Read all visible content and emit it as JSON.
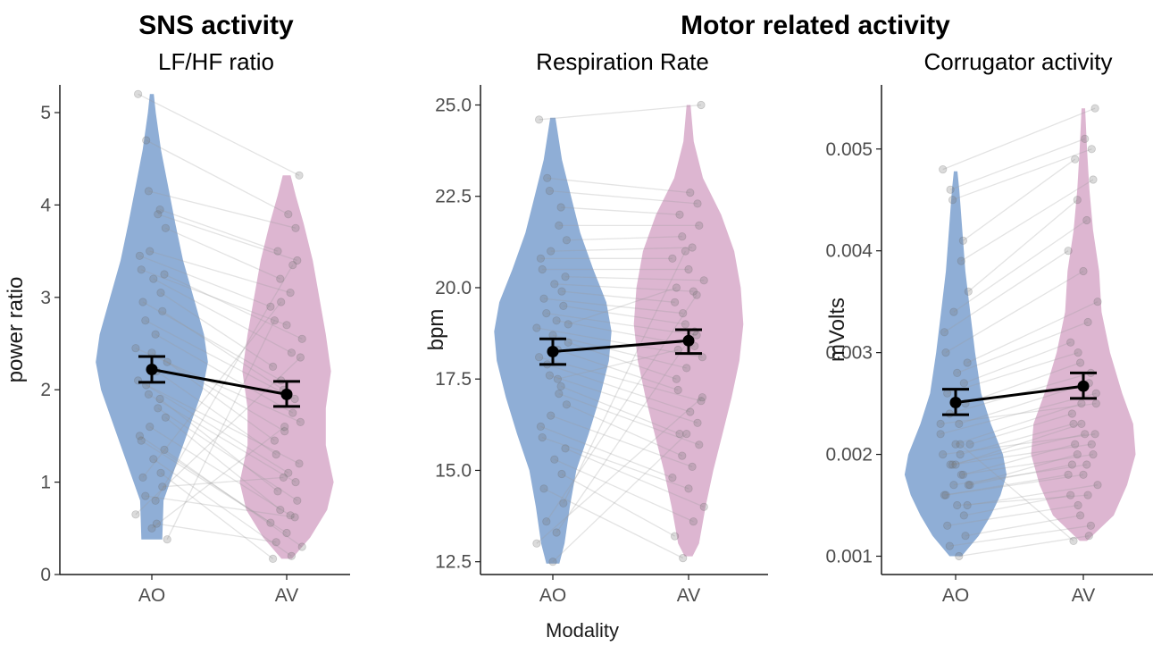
{
  "group_titles": {
    "sns": "SNS activity",
    "motor": "Motor related activity"
  },
  "xlabel": "Modality",
  "colors": {
    "AO": "#7ba0cf",
    "AV": "#d7a9c9"
  },
  "chart_data": [
    {
      "type": "violin",
      "title": "LF/HF ratio",
      "group_title": "SNS activity",
      "xlabel": "Modality",
      "ylabel": "power ratio",
      "categories": [
        "AO",
        "AV"
      ],
      "ylim": [
        0,
        5.3
      ],
      "yticks": [
        0,
        1,
        2,
        3,
        4,
        5
      ],
      "ytick_labels": [
        "0",
        "1",
        "2",
        "3",
        "4",
        "5"
      ],
      "distribution_range": {
        "AO": [
          0.38,
          5.2
        ],
        "AV": [
          0.17,
          4.32
        ]
      },
      "density": {
        "AO": [
          [
            0.38,
            0.16
          ],
          [
            0.8,
            0.18
          ],
          [
            1.2,
            0.38
          ],
          [
            1.6,
            0.58
          ],
          [
            2.0,
            0.78
          ],
          [
            2.3,
            0.86
          ],
          [
            2.6,
            0.8
          ],
          [
            3.0,
            0.64
          ],
          [
            3.4,
            0.48
          ],
          [
            3.8,
            0.36
          ],
          [
            4.2,
            0.25
          ],
          [
            4.6,
            0.14
          ],
          [
            5.0,
            0.06
          ],
          [
            5.2,
            0.03
          ]
        ],
        "AV": [
          [
            0.17,
            0.08
          ],
          [
            0.4,
            0.36
          ],
          [
            0.7,
            0.62
          ],
          [
            1.0,
            0.72
          ],
          [
            1.4,
            0.6
          ],
          [
            1.8,
            0.6
          ],
          [
            2.2,
            0.68
          ],
          [
            2.6,
            0.6
          ],
          [
            3.0,
            0.5
          ],
          [
            3.4,
            0.4
          ],
          [
            3.8,
            0.26
          ],
          [
            4.1,
            0.14
          ],
          [
            4.32,
            0.06
          ]
        ]
      },
      "means": {
        "AO": 2.22,
        "AV": 1.95
      },
      "error_bars": {
        "AO": [
          2.08,
          2.36
        ],
        "AV": [
          1.82,
          2.09
        ]
      },
      "points": {
        "AO": [
          5.2,
          4.7,
          4.15,
          3.95,
          3.9,
          3.75,
          3.5,
          3.45,
          3.3,
          3.25,
          3.2,
          3.05,
          2.95,
          2.85,
          2.75,
          2.6,
          2.45,
          2.4,
          2.3,
          2.2,
          2.1,
          2.05,
          1.95,
          1.9,
          1.8,
          1.7,
          1.6,
          1.5,
          1.45,
          1.35,
          1.25,
          1.1,
          1.05,
          0.95,
          0.85,
          0.8,
          0.65,
          0.5,
          0.38,
          0.55
        ],
        "AV": [
          4.32,
          3.9,
          3.75,
          3.5,
          3.4,
          3.2,
          3.05,
          2.9,
          2.7,
          2.55,
          2.4,
          2.25,
          2.1,
          2.0,
          1.9,
          1.75,
          1.65,
          1.55,
          1.45,
          1.3,
          1.2,
          1.1,
          1.0,
          0.9,
          0.8,
          0.7,
          0.64,
          0.56,
          0.45,
          0.3,
          0.2,
          0.17,
          2.95,
          1.05,
          0.62,
          3.35,
          2.35,
          1.6,
          2.75,
          0.35
        ]
      }
    },
    {
      "type": "violin",
      "title": "Respiration Rate",
      "group_title": "Motor related activity",
      "xlabel": "Modality",
      "ylabel": "bpm",
      "categories": [
        "AO",
        "AV"
      ],
      "ylim": [
        12.15,
        25.55
      ],
      "yticks": [
        12.5,
        15,
        17.5,
        20,
        22.5,
        25
      ],
      "ytick_labels": [
        "12.5",
        "15.0",
        "17.5",
        "20.0",
        "22.5",
        "25.0"
      ],
      "distribution_range": {
        "AO": [
          12.45,
          24.65
        ],
        "AV": [
          12.65,
          25.0
        ]
      },
      "density": {
        "AO": [
          [
            12.45,
            0.1
          ],
          [
            13.0,
            0.18
          ],
          [
            14.0,
            0.26
          ],
          [
            15.0,
            0.36
          ],
          [
            16.0,
            0.55
          ],
          [
            17.0,
            0.72
          ],
          [
            18.0,
            0.86
          ],
          [
            18.8,
            0.9
          ],
          [
            19.6,
            0.82
          ],
          [
            20.5,
            0.62
          ],
          [
            21.5,
            0.42
          ],
          [
            22.5,
            0.28
          ],
          [
            23.5,
            0.14
          ],
          [
            24.65,
            0.04
          ]
        ],
        "AV": [
          [
            12.65,
            0.06
          ],
          [
            13.0,
            0.16
          ],
          [
            14.0,
            0.26
          ],
          [
            15.0,
            0.38
          ],
          [
            16.0,
            0.52
          ],
          [
            17.0,
            0.66
          ],
          [
            18.0,
            0.78
          ],
          [
            19.0,
            0.84
          ],
          [
            20.0,
            0.8
          ],
          [
            21.0,
            0.7
          ],
          [
            22.0,
            0.5
          ],
          [
            23.0,
            0.22
          ],
          [
            24.0,
            0.08
          ],
          [
            25.0,
            0.03
          ]
        ]
      },
      "means": {
        "AO": 18.25,
        "AV": 18.55
      },
      "error_bars": {
        "AO": [
          17.9,
          18.6
        ],
        "AV": [
          18.2,
          18.85
        ]
      },
      "points": {
        "AO": [
          24.6,
          23.0,
          22.65,
          22.2,
          21.7,
          21.3,
          21.0,
          20.8,
          20.5,
          20.3,
          20.1,
          19.9,
          19.7,
          19.5,
          19.3,
          19.1,
          18.9,
          18.7,
          18.5,
          18.3,
          18.1,
          17.9,
          17.6,
          17.3,
          17.1,
          16.8,
          16.5,
          16.2,
          15.9,
          15.6,
          15.3,
          14.9,
          14.5,
          14.1,
          13.6,
          13.3,
          13.0,
          12.5,
          19.0,
          17.5
        ],
        "AV": [
          25.0,
          22.6,
          22.3,
          22.0,
          21.7,
          21.4,
          21.1,
          20.8,
          20.5,
          20.2,
          19.9,
          19.6,
          19.3,
          19.0,
          18.7,
          18.4,
          18.1,
          17.8,
          17.5,
          17.2,
          16.9,
          16.6,
          16.3,
          16.0,
          15.7,
          15.4,
          15.1,
          14.8,
          14.5,
          14.0,
          13.6,
          13.2,
          12.6,
          21.0,
          19.8,
          18.8,
          17.0,
          16.0,
          20.0,
          18.3
        ]
      }
    },
    {
      "type": "violin",
      "title": "Corrugator activity",
      "group_title": "Motor related activity",
      "xlabel": "Modality",
      "ylabel": "mVolts",
      "categories": [
        "AO",
        "AV"
      ],
      "ylim": [
        0.00082,
        0.00563
      ],
      "yticks": [
        0.001,
        0.002,
        0.003,
        0.004,
        0.005
      ],
      "ytick_labels": [
        "0.001",
        "0.002",
        "0.003",
        "0.004",
        "0.005"
      ],
      "distribution_range": {
        "AO": [
          0.001,
          0.00478
        ],
        "AV": [
          0.00115,
          0.0054
        ]
      },
      "density": {
        "AO": [
          [
            0.001,
            0.1
          ],
          [
            0.0012,
            0.38
          ],
          [
            0.0014,
            0.58
          ],
          [
            0.0016,
            0.74
          ],
          [
            0.0018,
            0.84
          ],
          [
            0.002,
            0.78
          ],
          [
            0.0023,
            0.58
          ],
          [
            0.0026,
            0.42
          ],
          [
            0.003,
            0.32
          ],
          [
            0.0034,
            0.24
          ],
          [
            0.0038,
            0.16
          ],
          [
            0.0042,
            0.11
          ],
          [
            0.0046,
            0.06
          ],
          [
            0.00478,
            0.03
          ]
        ],
        "AV": [
          [
            0.00115,
            0.06
          ],
          [
            0.0014,
            0.5
          ],
          [
            0.0017,
            0.72
          ],
          [
            0.002,
            0.86
          ],
          [
            0.0023,
            0.82
          ],
          [
            0.0026,
            0.64
          ],
          [
            0.003,
            0.44
          ],
          [
            0.0034,
            0.3
          ],
          [
            0.0038,
            0.26
          ],
          [
            0.0042,
            0.16
          ],
          [
            0.0046,
            0.1
          ],
          [
            0.005,
            0.06
          ],
          [
            0.0054,
            0.03
          ]
        ]
      },
      "means": {
        "AO": 0.00251,
        "AV": 0.00267
      },
      "error_bars": {
        "AO": [
          0.00239,
          0.00264
        ],
        "AV": [
          0.00255,
          0.0028
        ]
      },
      "points": {
        "AO": [
          0.0048,
          0.0046,
          0.0045,
          0.0041,
          0.0039,
          0.0036,
          0.0034,
          0.0032,
          0.003,
          0.0029,
          0.0028,
          0.0027,
          0.0026,
          0.0025,
          0.0024,
          0.0023,
          0.0022,
          0.0021,
          0.0021,
          0.002,
          0.002,
          0.0019,
          0.0019,
          0.0018,
          0.0018,
          0.0017,
          0.0017,
          0.0016,
          0.0016,
          0.0015,
          0.0015,
          0.0014,
          0.0013,
          0.0012,
          0.0011,
          0.001,
          0.0023,
          0.0019,
          0.0017,
          0.0021
        ],
        "AV": [
          0.0054,
          0.0051,
          0.005,
          0.0049,
          0.0047,
          0.0045,
          0.0043,
          0.004,
          0.0038,
          0.0035,
          0.0033,
          0.0031,
          0.003,
          0.0029,
          0.0028,
          0.0027,
          0.0026,
          0.0025,
          0.0024,
          0.0023,
          0.0022,
          0.0022,
          0.0021,
          0.0021,
          0.002,
          0.002,
          0.0019,
          0.0018,
          0.0018,
          0.0017,
          0.0016,
          0.0016,
          0.0015,
          0.0014,
          0.0013,
          0.0012,
          0.0025,
          0.0023,
          0.0019,
          0.00115
        ]
      }
    }
  ]
}
